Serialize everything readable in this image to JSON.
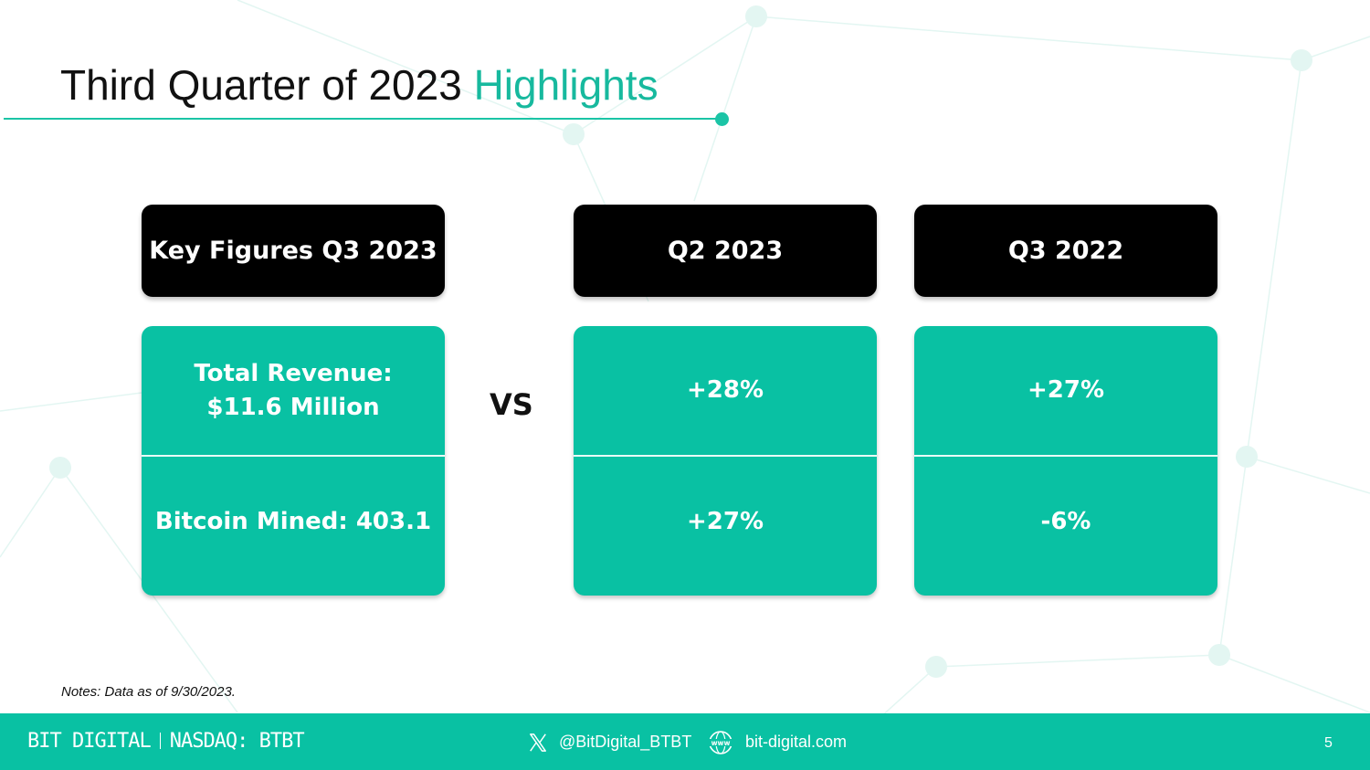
{
  "slide": {
    "title_main": "Third Quarter of 2023",
    "title_accent": "Highlights"
  },
  "columns": [
    {
      "header": "Key Figures Q3 2023",
      "top": "Total Revenue:\n$11.6 Million",
      "bottom": "Bitcoin Mined: 403.1"
    },
    {
      "header": "Q2 2023",
      "top": "+28%",
      "bottom": "+27%"
    },
    {
      "header": "Q3 2022",
      "top": "+27%",
      "bottom": "-6%"
    }
  ],
  "vs_label": "VS",
  "notes": "Notes:  Data as of 9/30/2023.",
  "footer": {
    "brand_left": "BIT DIGITAL",
    "brand_right": "NASDAQ: BTBT",
    "twitter_handle": "@BitDigital_BTBT",
    "website": "bit-digital.com",
    "page_number": "5",
    "twitter_icon": "x-logo-icon",
    "web_icon": "www-globe-icon"
  },
  "colors": {
    "accent": "#17b99e",
    "teal_box": "#09c1a3",
    "header_box": "#000000",
    "footer_bg": "#09c1a3"
  }
}
